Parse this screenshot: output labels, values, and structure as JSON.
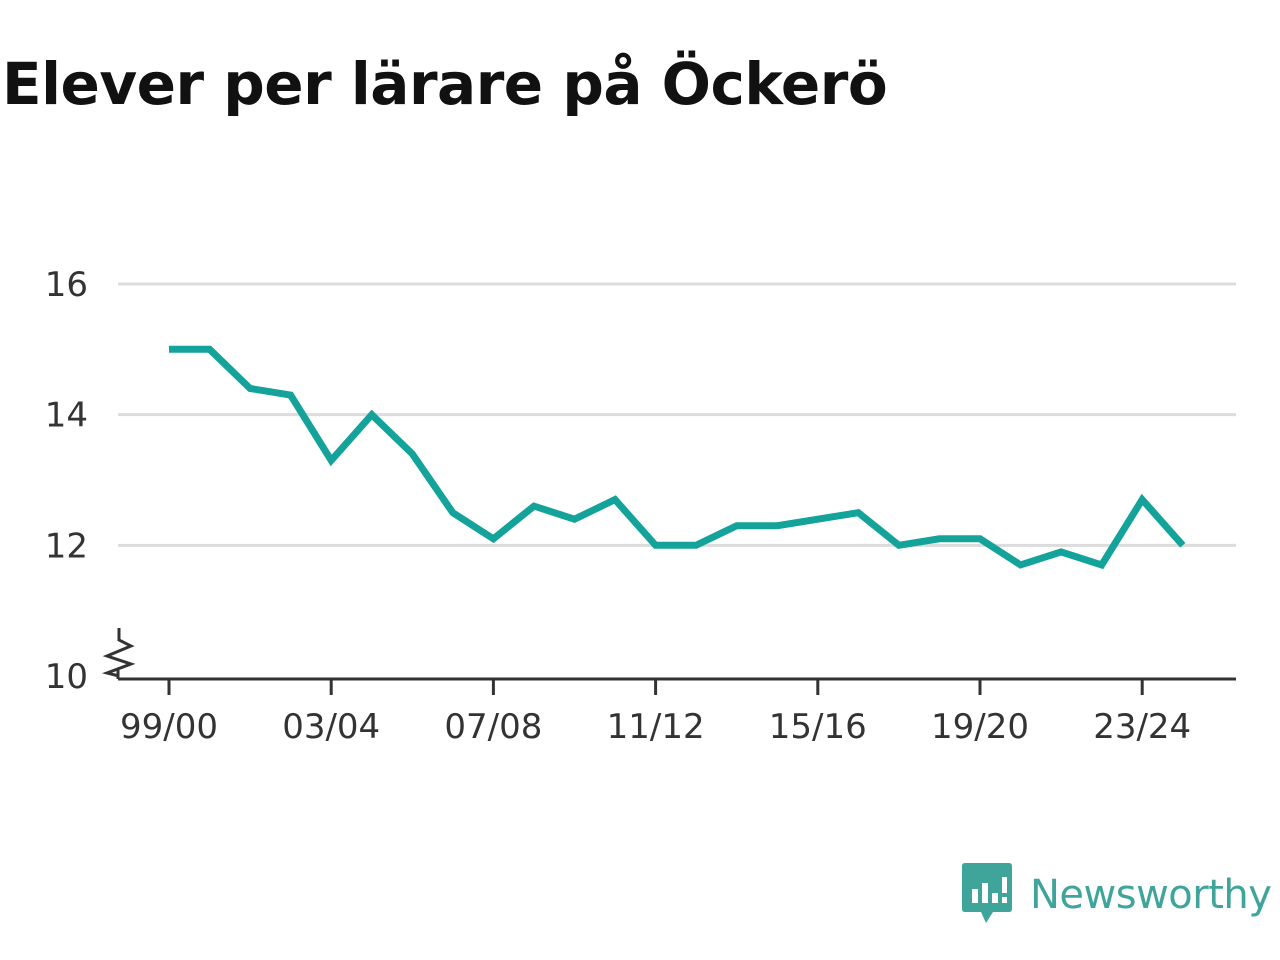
{
  "title": "Elever per lärare på Öckerö",
  "brand": {
    "name": "Newsworthy",
    "logo_icon": "bar-chart-speech-bubble-icon",
    "color": "#3fa59b"
  },
  "chart_data": {
    "type": "line",
    "title": "Elever per lärare på Öckerö",
    "xlabel": "",
    "ylabel": "",
    "y_ticks": [
      "10",
      "12",
      "14",
      "16"
    ],
    "ylim": [
      10,
      16
    ],
    "y_axis_break": true,
    "grid": true,
    "line_color": "#13a39a",
    "x_ticks": [
      "99/00",
      "03/04",
      "07/08",
      "11/12",
      "15/16",
      "19/20",
      "23/24"
    ],
    "series": [
      {
        "x": [
          "99/00",
          "00/01",
          "01/02",
          "02/03",
          "03/04",
          "04/05",
          "05/06",
          "06/07",
          "07/08",
          "08/09",
          "09/10",
          "10/11",
          "11/12",
          "12/13",
          "13/14",
          "14/15",
          "15/16",
          "16/17",
          "17/18",
          "18/19",
          "19/20",
          "20/21",
          "21/22",
          "22/23",
          "23/24",
          "24/25"
        ],
        "values": [
          15.0,
          15.0,
          14.4,
          14.3,
          13.3,
          14.0,
          13.4,
          12.5,
          12.1,
          12.6,
          12.4,
          12.7,
          12.0,
          12.0,
          12.3,
          12.3,
          12.4,
          12.5,
          12.0,
          12.1,
          12.1,
          11.7,
          11.9,
          11.7,
          12.7,
          12.0
        ]
      }
    ]
  }
}
